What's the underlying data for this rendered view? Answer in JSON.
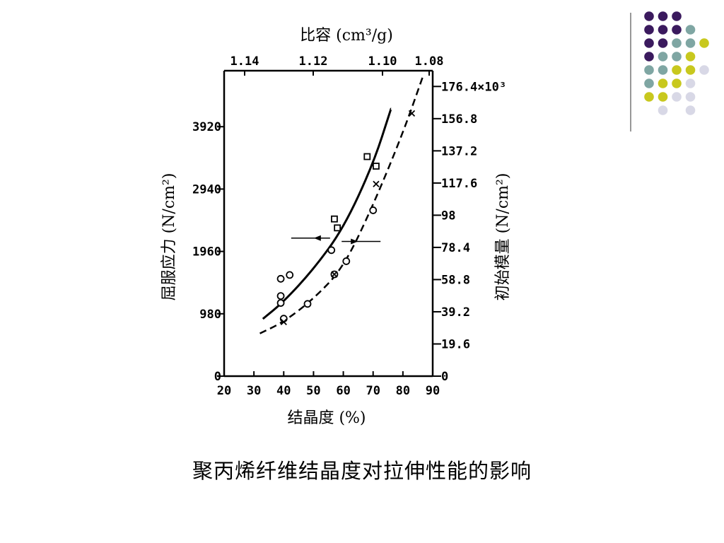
{
  "decoration": {
    "dots": [
      [
        "#3b1a5e",
        "#3b1a5e",
        "#3b1a5e",
        "",
        ""
      ],
      [
        "#3b1a5e",
        "#3b1a5e",
        "#3b1a5e",
        "#7fa6a3",
        ""
      ],
      [
        "#3b1a5e",
        "#3b1a5e",
        "#7fa6a3",
        "#7fa6a3",
        "#c8c81e"
      ],
      [
        "#3b1a5e",
        "#7fa6a3",
        "#7fa6a3",
        "#c8c81e",
        ""
      ],
      [
        "#7fa6a3",
        "#7fa6a3",
        "#c8c81e",
        "#c8c81e",
        "#d8d8e6"
      ],
      [
        "#7fa6a3",
        "#c8c81e",
        "#c8c81e",
        "#d8d8e6",
        ""
      ],
      [
        "#c8c81e",
        "#c8c81e",
        "#d8d8e6",
        "#d8d8e6",
        ""
      ],
      [
        "",
        "#d8d8e6",
        "",
        "#d8d8e6",
        ""
      ]
    ]
  },
  "caption": "聚丙烯纤维结晶度对拉伸性能的影响",
  "chart_data": {
    "type": "scatter",
    "title": "",
    "xlabel": "结晶度 (%)",
    "ylabel_left": "屈服应力 (N/cm²)",
    "ylabel_right": "初始模量 (N/cm²)",
    "xlabel_top": "比容 (cm³/g)",
    "x_ticks": [
      "20",
      "30",
      "40",
      "50",
      "60",
      "70",
      "80",
      "90"
    ],
    "xlim": [
      20,
      90
    ],
    "top_ticks": [
      "1.14",
      "1.12",
      "1.10",
      "1.08"
    ],
    "left_ticks": [
      "0",
      "980",
      "1960",
      "2940",
      "3920"
    ],
    "ylim_left": [
      0,
      4800
    ],
    "right_ticks": [
      "0",
      "19.6",
      "39.2",
      "58.8",
      "78.4",
      "98",
      "117.6",
      "137.2",
      "156.8",
      "176.4×10³"
    ],
    "ylim_right": [
      0,
      186
    ],
    "grid": false,
    "series": [
      {
        "style": "solid",
        "axis": "left",
        "curve": [
          [
            33,
            900
          ],
          [
            40,
            1170
          ],
          [
            50,
            1680
          ],
          [
            60,
            2320
          ],
          [
            70,
            3330
          ],
          [
            76,
            4200
          ]
        ],
        "points": [
          [
            39,
            1530
          ],
          [
            42,
            1590
          ],
          [
            39,
            1260
          ],
          [
            39,
            1150
          ],
          [
            56,
            1980
          ],
          [
            57,
            2470
          ],
          [
            58,
            2330
          ],
          [
            68,
            3450
          ],
          [
            71,
            3300
          ]
        ],
        "markers": [
          "circle",
          "circle",
          "circle",
          "circle",
          "circle",
          "square",
          "square",
          "square",
          "square"
        ]
      },
      {
        "style": "dashed",
        "axis": "right",
        "curve": [
          [
            32,
            26
          ],
          [
            40,
            33
          ],
          [
            50,
            47
          ],
          [
            60,
            66
          ],
          [
            70,
            104
          ],
          [
            80,
            148
          ],
          [
            87,
            184
          ]
        ],
        "points": [
          [
            40,
            35
          ],
          [
            48,
            44
          ],
          [
            57,
            62
          ],
          [
            61,
            70
          ],
          [
            70,
            101
          ],
          [
            40,
            33
          ],
          [
            57,
            62
          ],
          [
            71,
            117
          ],
          [
            83,
            160
          ]
        ],
        "markers": [
          "circle",
          "circle",
          "circle",
          "circle",
          "circle",
          "cross",
          "cross",
          "cross",
          "cross"
        ]
      }
    ],
    "annotations": [
      {
        "text": "←",
        "axis": "left",
        "x": 52,
        "y": 2170
      },
      {
        "text": "→",
        "axis": "right",
        "x": 63,
        "y": 82
      }
    ]
  }
}
